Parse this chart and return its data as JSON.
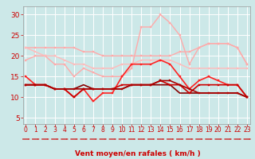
{
  "x": [
    0,
    1,
    2,
    3,
    4,
    5,
    6,
    7,
    8,
    9,
    10,
    11,
    12,
    13,
    14,
    15,
    16,
    17,
    18,
    19,
    20,
    21,
    22,
    23
  ],
  "series": [
    {
      "values": [
        22,
        22,
        22,
        22,
        22,
        22,
        21,
        21,
        20,
        20,
        20,
        20,
        20,
        20,
        20,
        20,
        21,
        21,
        22,
        23,
        23,
        23,
        22,
        18
      ],
      "color": "#ffaaaa",
      "linewidth": 1.0,
      "marker": "s",
      "markersize": 2.0,
      "zorder": 2
    },
    {
      "values": [
        19,
        20,
        20,
        18,
        18,
        15,
        17,
        16,
        15,
        15,
        15,
        17,
        27,
        27,
        30,
        28,
        25,
        18,
        22,
        23,
        23,
        23,
        22,
        18
      ],
      "color": "#ffaaaa",
      "linewidth": 1.0,
      "marker": "s",
      "markersize": 2.0,
      "zorder": 2
    },
    {
      "values": [
        22,
        21,
        20,
        20,
        19,
        18,
        18,
        17,
        17,
        17,
        18,
        18,
        19,
        19,
        19,
        19,
        18,
        17,
        17,
        17,
        17,
        17,
        17,
        17
      ],
      "color": "#ffbbbb",
      "linewidth": 1.0,
      "marker": "s",
      "markersize": 2.0,
      "zorder": 2
    },
    {
      "values": [
        15,
        13,
        13,
        12,
        12,
        10,
        12,
        9,
        11,
        11,
        15,
        18,
        18,
        18,
        19,
        18,
        15,
        12,
        14,
        15,
        14,
        13,
        13,
        10
      ],
      "color": "#ff2222",
      "linewidth": 1.2,
      "marker": "s",
      "markersize": 2.0,
      "zorder": 4
    },
    {
      "values": [
        13,
        13,
        13,
        12,
        12,
        10,
        12,
        12,
        12,
        12,
        13,
        13,
        13,
        13,
        14,
        13,
        13,
        11,
        13,
        13,
        13,
        13,
        13,
        10
      ],
      "color": "#cc0000",
      "linewidth": 1.2,
      "marker": "s",
      "markersize": 2.0,
      "zorder": 4
    },
    {
      "values": [
        13,
        13,
        13,
        12,
        12,
        12,
        12,
        12,
        12,
        12,
        12,
        13,
        13,
        13,
        14,
        14,
        13,
        12,
        11,
        11,
        11,
        11,
        11,
        10
      ],
      "color": "#aa0000",
      "linewidth": 1.2,
      "marker": "s",
      "markersize": 2.0,
      "zorder": 4
    },
    {
      "values": [
        13,
        13,
        13,
        12,
        12,
        12,
        13,
        12,
        12,
        12,
        12,
        13,
        13,
        13,
        13,
        13,
        11,
        11,
        11,
        11,
        11,
        11,
        11,
        10
      ],
      "color": "#880000",
      "linewidth": 1.2,
      "marker": null,
      "markersize": 0,
      "zorder": 3
    }
  ],
  "xlabel": "Vent moyen/en rafales ( km/h )",
  "yticks": [
    5,
    10,
    15,
    20,
    25,
    30
  ],
  "xticks": [
    0,
    1,
    2,
    3,
    4,
    5,
    6,
    7,
    8,
    9,
    10,
    11,
    12,
    13,
    14,
    15,
    16,
    17,
    18,
    19,
    20,
    21,
    22,
    23
  ],
  "ylim": [
    3.5,
    32
  ],
  "xlim": [
    -0.3,
    23.3
  ],
  "bg_color": "#cce8e8",
  "grid_color": "#ffffff",
  "tick_color": "#cc0000",
  "label_color": "#cc0000",
  "xlabel_fontsize": 6.5,
  "ytick_fontsize": 6.5,
  "xtick_fontsize": 5.5,
  "arrow_color": "#cc0000"
}
